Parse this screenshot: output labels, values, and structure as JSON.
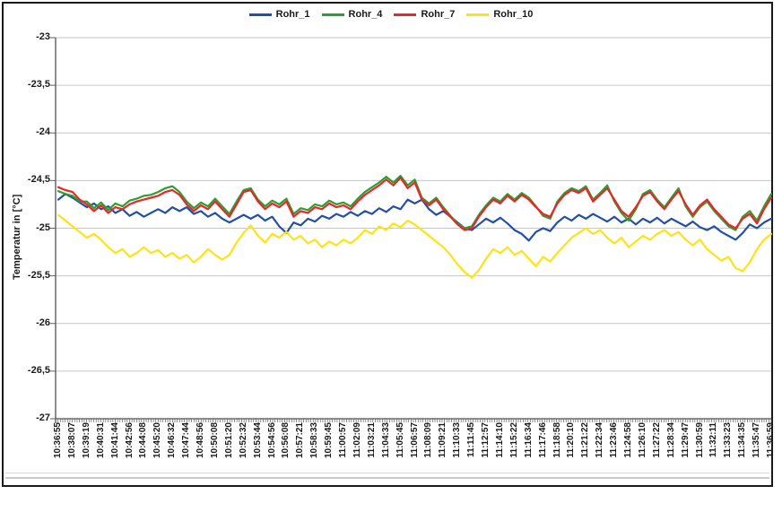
{
  "chart_data": {
    "type": "line",
    "title": "",
    "xlabel": "",
    "ylabel": "Temperatur in [°C]",
    "ylim": [
      -27,
      -23
    ],
    "grid": "horizontal",
    "legend_position": "top-center",
    "ytick_values": [
      -23,
      -23.5,
      -24,
      -24.5,
      -25,
      -25.5,
      -26,
      -26.5,
      -27
    ],
    "ytick_labels": [
      "-23",
      "-23,5",
      "-24",
      "-24,5",
      "-25",
      "-25,5",
      "-26",
      "-26,5",
      "-27"
    ],
    "xtick_labels": [
      "10:36:55",
      "10:38:07",
      "10:39:19",
      "10:40:31",
      "10:41:44",
      "10:42:56",
      "10:44:08",
      "10:45:20",
      "10:46:32",
      "10:47:44",
      "10:48:56",
      "10:50:08",
      "10:51:20",
      "10:52:32",
      "10:53:44",
      "10:54:56",
      "10:56:08",
      "10:57:21",
      "10:58:33",
      "10:59:45",
      "11:00:57",
      "11:02:09",
      "11:03:21",
      "11:04:33",
      "11:05:45",
      "11:06:57",
      "11:08:09",
      "11:09:21",
      "11:10:33",
      "11:11:45",
      "11:12:57",
      "11:14:10",
      "11:15:22",
      "11:16:34",
      "11:17:46",
      "11:18:58",
      "11:20:10",
      "11:21:22",
      "11:22:34",
      "11:23:46",
      "11:24:58",
      "11:26:10",
      "11:27:22",
      "11:28:34",
      "11:29:47",
      "11:30:59",
      "11:32:11",
      "11:33:23",
      "11:34:35",
      "11:35:47",
      "11:36:59"
    ],
    "x_start": "10:36:55",
    "x_end": "11:36:59",
    "xtick_interval_seconds": 72,
    "sample_interval_seconds": 36,
    "colors": {
      "gridline": "#c6c6c6",
      "axis": "#6b6b6b",
      "frame": "#1a1a1a",
      "tick": "#5f5f5f"
    },
    "series": [
      {
        "name": "Rohr_1",
        "color": "#2450a4",
        "values": [
          -24.7,
          -24.64,
          -24.68,
          -24.73,
          -24.78,
          -24.74,
          -24.8,
          -24.77,
          -24.84,
          -24.8,
          -24.87,
          -24.83,
          -24.88,
          -24.84,
          -24.8,
          -24.84,
          -24.78,
          -24.82,
          -24.78,
          -24.85,
          -24.82,
          -24.88,
          -24.84,
          -24.9,
          -24.94,
          -24.9,
          -24.86,
          -24.9,
          -24.86,
          -24.92,
          -24.88,
          -24.98,
          -25.05,
          -24.94,
          -24.97,
          -24.9,
          -24.93,
          -24.87,
          -24.9,
          -24.85,
          -24.88,
          -24.83,
          -24.87,
          -24.82,
          -24.85,
          -24.79,
          -24.83,
          -24.77,
          -24.8,
          -24.7,
          -24.74,
          -24.7,
          -24.8,
          -24.86,
          -24.82,
          -24.88,
          -24.94,
          -25.0,
          -25.02,
          -24.96,
          -24.9,
          -24.94,
          -24.89,
          -24.95,
          -25.02,
          -25.06,
          -25.13,
          -25.04,
          -25.0,
          -25.03,
          -24.94,
          -24.88,
          -24.92,
          -24.86,
          -24.9,
          -24.85,
          -24.89,
          -24.93,
          -24.88,
          -24.94,
          -24.9,
          -24.96,
          -24.9,
          -24.94,
          -24.89,
          -24.95,
          -24.9,
          -24.94,
          -24.98,
          -24.93,
          -24.99,
          -25.02,
          -24.98,
          -25.04,
          -25.08,
          -25.12,
          -25.05,
          -24.96,
          -25.0,
          -24.94,
          -24.9
        ]
      },
      {
        "name": "Rohr_4",
        "color": "#2aa12e",
        "values": [
          -24.61,
          -24.64,
          -24.66,
          -24.72,
          -24.72,
          -24.79,
          -24.73,
          -24.81,
          -24.74,
          -24.77,
          -24.71,
          -24.69,
          -24.66,
          -24.65,
          -24.62,
          -24.58,
          -24.56,
          -24.62,
          -24.72,
          -24.79,
          -24.73,
          -24.77,
          -24.69,
          -24.77,
          -24.85,
          -24.72,
          -24.6,
          -24.58,
          -24.7,
          -24.77,
          -24.71,
          -24.75,
          -24.69,
          -24.85,
          -24.79,
          -24.81,
          -24.75,
          -24.77,
          -24.71,
          -24.75,
          -24.73,
          -24.77,
          -24.69,
          -24.62,
          -24.57,
          -24.52,
          -24.46,
          -24.52,
          -24.45,
          -24.55,
          -24.49,
          -24.68,
          -24.74,
          -24.68,
          -24.78,
          -24.87,
          -24.95,
          -25.0,
          -24.98,
          -24.86,
          -24.76,
          -24.68,
          -24.72,
          -24.64,
          -24.7,
          -24.63,
          -24.68,
          -24.77,
          -24.87,
          -24.9,
          -24.72,
          -24.63,
          -24.58,
          -24.61,
          -24.56,
          -24.7,
          -24.63,
          -24.55,
          -24.72,
          -24.84,
          -24.92,
          -24.8,
          -24.64,
          -24.6,
          -24.7,
          -24.78,
          -24.68,
          -24.58,
          -24.77,
          -24.88,
          -24.78,
          -24.72,
          -24.82,
          -24.9,
          -24.98,
          -25.02,
          -24.88,
          -24.82,
          -24.92,
          -24.77,
          -24.64
        ]
      },
      {
        "name": "Rohr_7",
        "color": "#e8262b",
        "values": [
          -24.57,
          -24.6,
          -24.62,
          -24.7,
          -24.75,
          -24.82,
          -24.76,
          -24.84,
          -24.78,
          -24.8,
          -24.75,
          -24.72,
          -24.7,
          -24.68,
          -24.66,
          -24.62,
          -24.6,
          -24.65,
          -24.75,
          -24.82,
          -24.76,
          -24.8,
          -24.72,
          -24.8,
          -24.88,
          -24.75,
          -24.62,
          -24.6,
          -24.72,
          -24.8,
          -24.74,
          -24.78,
          -24.72,
          -24.88,
          -24.82,
          -24.84,
          -24.78,
          -24.8,
          -24.74,
          -24.78,
          -24.76,
          -24.8,
          -24.72,
          -24.65,
          -24.6,
          -24.55,
          -24.49,
          -24.55,
          -24.47,
          -24.58,
          -24.52,
          -24.7,
          -24.76,
          -24.7,
          -24.8,
          -24.88,
          -24.96,
          -25.02,
          -25.0,
          -24.88,
          -24.78,
          -24.7,
          -24.74,
          -24.66,
          -24.72,
          -24.65,
          -24.7,
          -24.78,
          -24.85,
          -24.88,
          -24.74,
          -24.65,
          -24.6,
          -24.63,
          -24.58,
          -24.72,
          -24.65,
          -24.58,
          -24.7,
          -24.82,
          -24.88,
          -24.78,
          -24.66,
          -24.62,
          -24.72,
          -24.8,
          -24.7,
          -24.61,
          -24.75,
          -24.86,
          -24.76,
          -24.7,
          -24.8,
          -24.88,
          -24.96,
          -25.0,
          -24.9,
          -24.85,
          -24.95,
          -24.8,
          -24.68
        ]
      },
      {
        "name": "Rohr_10",
        "color": "#ffe216",
        "values": [
          -24.86,
          -24.92,
          -24.98,
          -25.04,
          -25.1,
          -25.06,
          -25.12,
          -25.2,
          -25.26,
          -25.22,
          -25.3,
          -25.26,
          -25.2,
          -25.26,
          -25.23,
          -25.3,
          -25.26,
          -25.32,
          -25.28,
          -25.36,
          -25.3,
          -25.22,
          -25.28,
          -25.33,
          -25.28,
          -25.15,
          -25.05,
          -24.97,
          -25.08,
          -25.15,
          -25.06,
          -25.1,
          -25.04,
          -25.12,
          -25.08,
          -25.16,
          -25.12,
          -25.2,
          -25.14,
          -25.18,
          -25.12,
          -25.16,
          -25.1,
          -25.02,
          -25.06,
          -24.98,
          -25.02,
          -24.95,
          -24.99,
          -24.92,
          -24.96,
          -25.02,
          -25.08,
          -25.14,
          -25.2,
          -25.28,
          -25.38,
          -25.46,
          -25.52,
          -25.44,
          -25.32,
          -25.22,
          -25.26,
          -25.2,
          -25.28,
          -25.24,
          -25.32,
          -25.4,
          -25.3,
          -25.35,
          -25.26,
          -25.18,
          -25.1,
          -25.05,
          -25.0,
          -25.06,
          -25.02,
          -25.1,
          -25.16,
          -25.1,
          -25.2,
          -25.14,
          -25.08,
          -25.12,
          -25.06,
          -25.02,
          -25.08,
          -25.04,
          -25.12,
          -25.18,
          -25.12,
          -25.22,
          -25.28,
          -25.34,
          -25.3,
          -25.42,
          -25.45,
          -25.36,
          -25.22,
          -25.12,
          -25.06
        ]
      }
    ]
  }
}
